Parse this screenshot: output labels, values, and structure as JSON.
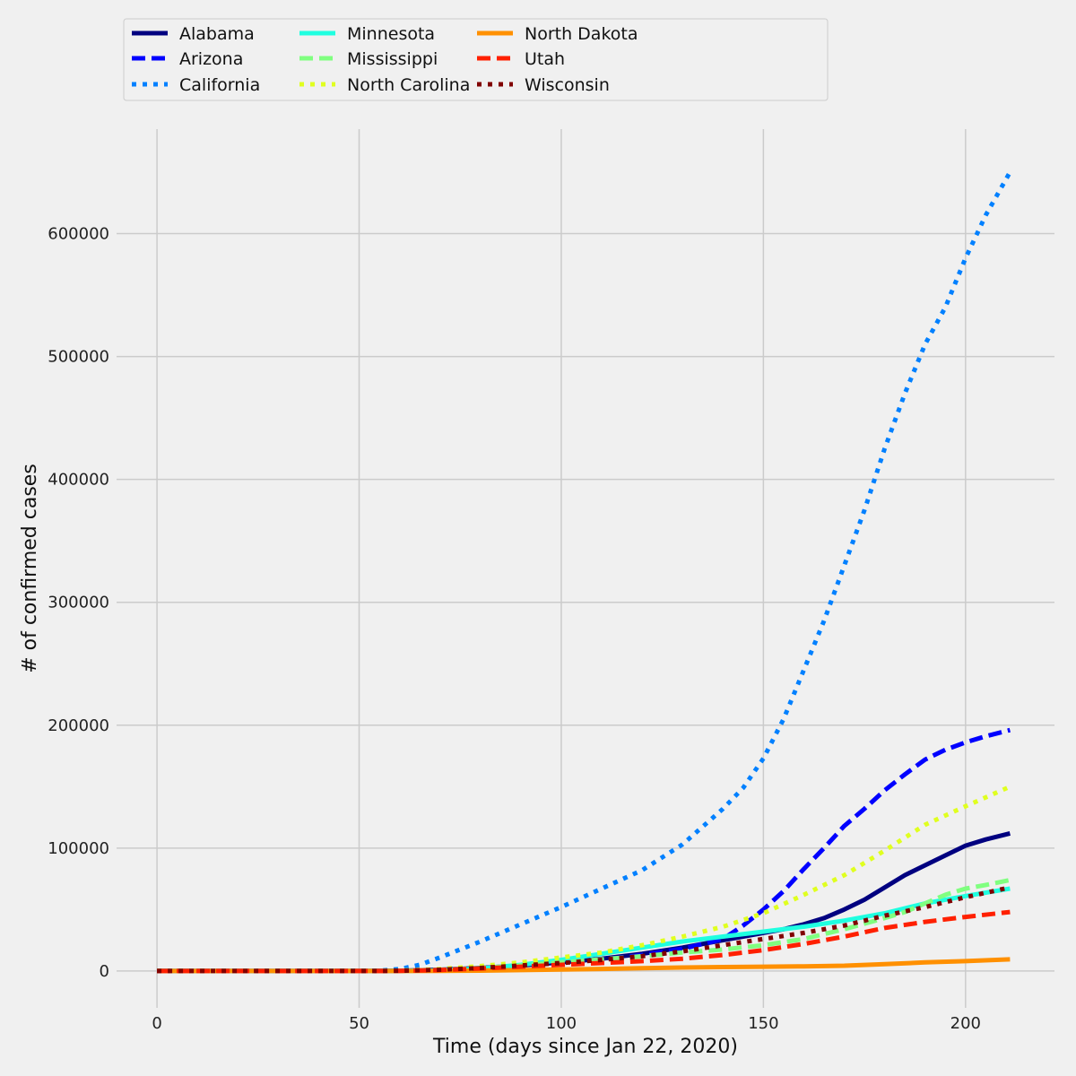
{
  "chart_data": {
    "type": "line",
    "xlabel": "Time (days since Jan 22, 2020)",
    "ylabel": "# of confirmed cases",
    "xlim": [
      -10,
      222
    ],
    "ylim": [
      -30000,
      685000
    ],
    "xticks": [
      0,
      50,
      100,
      150,
      200
    ],
    "yticks": [
      0,
      100000,
      200000,
      300000,
      400000,
      500000,
      600000
    ],
    "grid": true,
    "legend_position": "top",
    "legend_columns": 4,
    "series": [
      {
        "name": "Alabama",
        "color": "#000080",
        "dash": "solid",
        "x": [
          0,
          50,
          60,
          70,
          80,
          90,
          100,
          110,
          120,
          130,
          140,
          145,
          150,
          155,
          160,
          165,
          170,
          175,
          180,
          185,
          190,
          195,
          200,
          205,
          211
        ],
        "y": [
          0,
          0,
          200,
          1000,
          2500,
          4500,
          7000,
          10000,
          14000,
          19000,
          25000,
          28000,
          31000,
          34000,
          38000,
          43000,
          50000,
          58000,
          68000,
          78000,
          86000,
          94000,
          102000,
          107000,
          112000
        ]
      },
      {
        "name": "Arizona",
        "color": "#0000ff",
        "dash": "dashed",
        "x": [
          0,
          50,
          60,
          70,
          80,
          90,
          100,
          110,
          120,
          130,
          140,
          145,
          150,
          155,
          160,
          165,
          170,
          175,
          180,
          185,
          190,
          195,
          200,
          205,
          211
        ],
        "y": [
          0,
          0,
          200,
          800,
          2000,
          3500,
          6000,
          9000,
          13000,
          18000,
          26000,
          37000,
          50000,
          65000,
          83000,
          100000,
          118000,
          132000,
          147000,
          160000,
          172000,
          180000,
          186000,
          191000,
          196000
        ]
      },
      {
        "name": "California",
        "color": "#0080ff",
        "dash": "dotted",
        "x": [
          0,
          55,
          60,
          65,
          70,
          80,
          90,
          100,
          110,
          120,
          130,
          140,
          145,
          150,
          155,
          160,
          165,
          170,
          175,
          180,
          185,
          190,
          195,
          200,
          205,
          211
        ],
        "y": [
          0,
          300,
          1500,
          5000,
          11000,
          24000,
          38000,
          52000,
          67000,
          82000,
          103000,
          132000,
          149000,
          173000,
          205000,
          245000,
          285000,
          330000,
          375000,
          425000,
          470000,
          510000,
          540000,
          580000,
          615000,
          650000
        ]
      },
      {
        "name": "Minnesota",
        "color": "#1fffe0",
        "dash": "solid",
        "x": [
          0,
          55,
          60,
          70,
          80,
          90,
          100,
          110,
          120,
          130,
          140,
          150,
          160,
          170,
          180,
          190,
          200,
          211
        ],
        "y": [
          0,
          0,
          100,
          500,
          2000,
          5000,
          9000,
          14000,
          19000,
          24000,
          28000,
          32000,
          36000,
          41000,
          47000,
          55000,
          61000,
          67000
        ]
      },
      {
        "name": "Mississippi",
        "color": "#80ff80",
        "dash": "dashed",
        "x": [
          0,
          55,
          60,
          70,
          80,
          90,
          100,
          110,
          120,
          130,
          140,
          150,
          160,
          170,
          180,
          185,
          190,
          195,
          200,
          205,
          211
        ],
        "y": [
          0,
          0,
          200,
          900,
          2300,
          4500,
          7000,
          9500,
          12000,
          15000,
          17500,
          21000,
          26000,
          34000,
          43000,
          48000,
          55000,
          62000,
          67000,
          70000,
          74000
        ]
      },
      {
        "name": "North Carolina",
        "color": "#e0ff1f",
        "dash": "dotted",
        "x": [
          0,
          55,
          60,
          70,
          80,
          90,
          100,
          110,
          120,
          130,
          140,
          150,
          160,
          170,
          180,
          190,
          200,
          211
        ],
        "y": [
          0,
          0,
          300,
          1500,
          4000,
          7000,
          11000,
          15000,
          21000,
          28000,
          36000,
          47000,
          62000,
          78000,
          98000,
          119000,
          134000,
          150000
        ]
      },
      {
        "name": "North Dakota",
        "color": "#ff9000",
        "dash": "solid",
        "x": [
          0,
          60,
          70,
          80,
          90,
          100,
          110,
          120,
          130,
          140,
          150,
          160,
          170,
          180,
          190,
          200,
          211
        ],
        "y": [
          0,
          0,
          100,
          300,
          700,
          1200,
          1700,
          2300,
          2800,
          3200,
          3500,
          3800,
          4300,
          5500,
          7000,
          8000,
          9500
        ]
      },
      {
        "name": "Utah",
        "color": "#ff2000",
        "dash": "dashed",
        "x": [
          0,
          55,
          60,
          70,
          80,
          90,
          100,
          110,
          120,
          130,
          140,
          150,
          160,
          170,
          180,
          190,
          200,
          211
        ],
        "y": [
          0,
          0,
          100,
          800,
          2000,
          3500,
          5000,
          6500,
          8000,
          10000,
          13000,
          17000,
          22000,
          28000,
          35000,
          40000,
          44000,
          48000
        ]
      },
      {
        "name": "Wisconsin",
        "color": "#800000",
        "dash": "dotted",
        "x": [
          0,
          55,
          60,
          70,
          80,
          90,
          100,
          110,
          120,
          130,
          140,
          150,
          160,
          170,
          180,
          190,
          200,
          211
        ],
        "y": [
          0,
          0,
          200,
          1000,
          2500,
          4500,
          6500,
          9000,
          12000,
          16000,
          21000,
          26000,
          31000,
          37000,
          45000,
          52000,
          60000,
          68000
        ]
      }
    ]
  }
}
